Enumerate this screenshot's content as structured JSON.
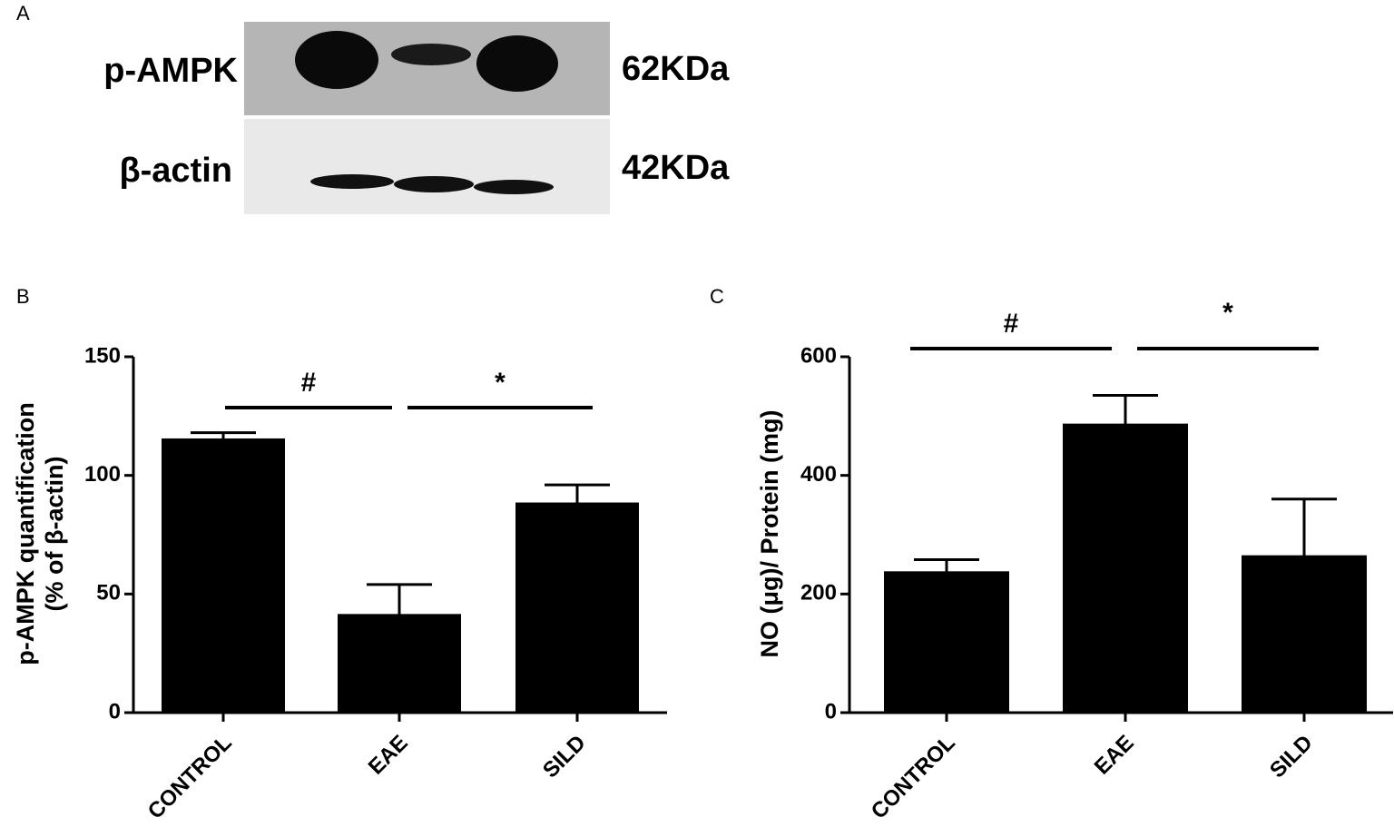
{
  "panel_a": {
    "label": "A",
    "blot_labels": [
      "p-AMPK",
      "β-actin"
    ],
    "sizes": [
      "62KDa",
      "42KDa"
    ]
  },
  "chart_data": [
    {
      "type": "bar",
      "panel": "B",
      "y_label": [
        "p-AMPK quantification",
        "(% of β-actin)"
      ],
      "categories": [
        "CONTROL",
        "EAE",
        "SILD"
      ],
      "values": [
        115,
        41,
        88
      ],
      "errors": [
        3,
        13,
        8
      ],
      "color": "#000000",
      "ylim": [
        0,
        150
      ],
      "yticks": [
        0,
        50,
        100,
        150
      ],
      "annotations": [
        "#",
        "*"
      ]
    },
    {
      "type": "bar",
      "panel": "C",
      "y_label": [
        "NO (μg)/ Protein (mg)"
      ],
      "categories": [
        "CONTROL",
        "EAE",
        "SILD"
      ],
      "values": [
        236,
        485,
        263
      ],
      "errors": [
        22,
        50,
        97
      ],
      "color": "#000000",
      "ylim": [
        0,
        600
      ],
      "yticks": [
        0,
        200,
        400,
        600
      ],
      "annotations": [
        "#",
        "*"
      ]
    }
  ]
}
